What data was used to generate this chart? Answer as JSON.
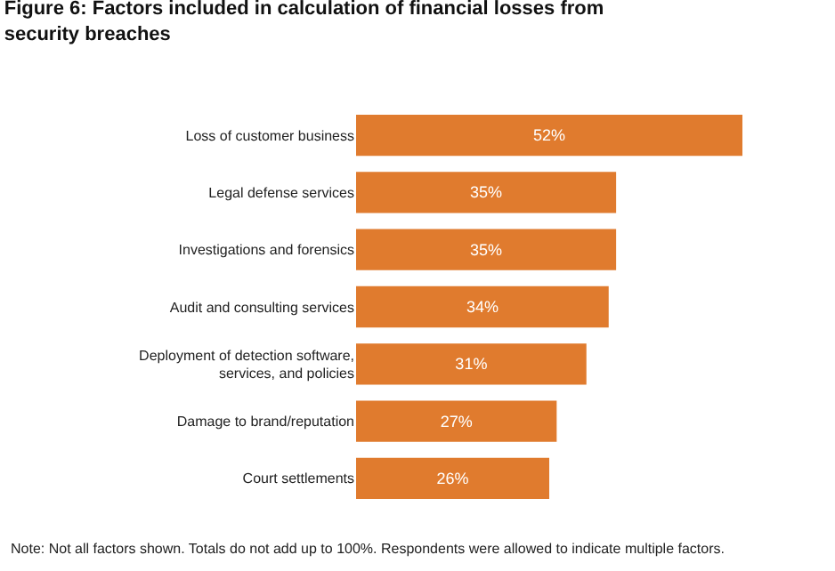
{
  "chart_data": {
    "type": "bar",
    "orientation": "horizontal",
    "title": "Figure 6: Factors included in calculation of financial losses from\nsecurity breaches",
    "categories": [
      "Loss of customer business",
      "Legal defense services",
      "Investigations and forensics",
      "Audit and consulting services",
      "Deployment of detection software,\nservices, and policies",
      "Damage to brand/reputation",
      "Court settlements"
    ],
    "values": [
      52,
      35,
      35,
      34,
      31,
      27,
      26
    ],
    "value_labels": [
      "52%",
      "35%",
      "35%",
      "34%",
      "31%",
      "27%",
      "26%"
    ],
    "color": "#e07b2e",
    "annotations": [
      "Note: Not all factors shown. Totals do not add up to 100%. Respondents were allowed to indicate multiple factors."
    ]
  }
}
